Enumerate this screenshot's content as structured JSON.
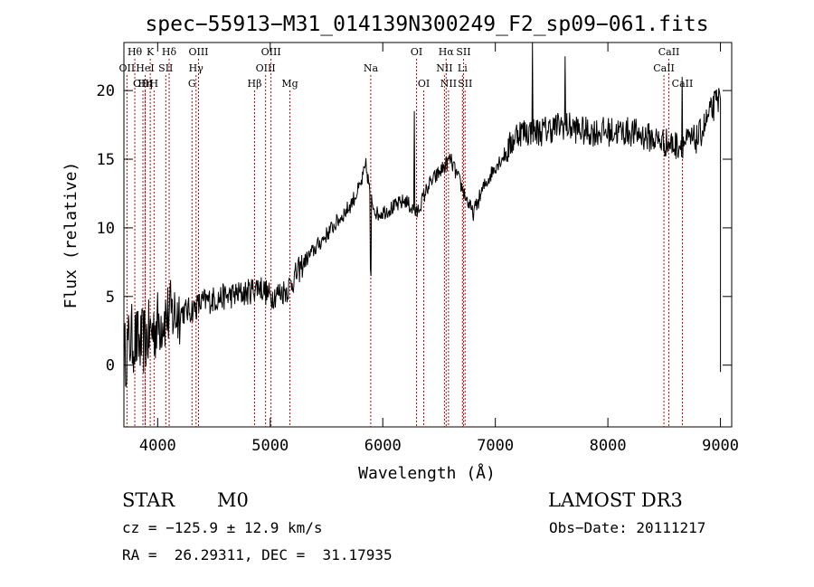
{
  "info": {
    "object_class": "STAR",
    "subclass": "M0",
    "survey": "LAMOST DR3",
    "redshift_line": "cz = −125.9 ± 12.9 km/s",
    "obs_date": "Obs−Date: 20111217",
    "coords": "RA =  26.29311, DEC =  31.17935"
  },
  "chart_data": {
    "type": "line",
    "title": "spec−55913−M31_014139N300249_F2_sp09−061.fits",
    "xlabel": "Wavelength (Å)",
    "ylabel": "Flux (relative)",
    "xlim": [
      3700,
      9100
    ],
    "ylim": [
      -4.5,
      23.5
    ],
    "xticks": [
      4000,
      5000,
      6000,
      7000,
      8000,
      9000
    ],
    "yticks": [
      0,
      5,
      10,
      15,
      20
    ],
    "grid": false,
    "line_color": "#000000",
    "marker_color": "#cc0000",
    "spectrum_anchors": [
      [
        3700,
        0.5
      ],
      [
        3760,
        2.0
      ],
      [
        3850,
        1.5
      ],
      [
        3950,
        2.5
      ],
      [
        4050,
        3.5
      ],
      [
        4150,
        3.8
      ],
      [
        4300,
        4.0
      ],
      [
        4400,
        4.6
      ],
      [
        4600,
        5.0
      ],
      [
        4800,
        5.3
      ],
      [
        4900,
        5.8
      ],
      [
        5000,
        5.0
      ],
      [
        5150,
        5.5
      ],
      [
        5300,
        7.5
      ],
      [
        5500,
        9.5
      ],
      [
        5700,
        11.5
      ],
      [
        5800,
        13.0
      ],
      [
        5850,
        14.5
      ],
      [
        5900,
        12.0
      ],
      [
        5950,
        11.0
      ],
      [
        6100,
        11.5
      ],
      [
        6200,
        12.0
      ],
      [
        6300,
        11.0
      ],
      [
        6400,
        13.0
      ],
      [
        6500,
        14.0
      ],
      [
        6600,
        15.0
      ],
      [
        6700,
        13.0
      ],
      [
        6800,
        11.0
      ],
      [
        6900,
        13.0
      ],
      [
        7000,
        14.5
      ],
      [
        7100,
        15.5
      ],
      [
        7200,
        17.0
      ],
      [
        7400,
        17.0
      ],
      [
        7600,
        17.5
      ],
      [
        7800,
        17.0
      ],
      [
        8000,
        17.0
      ],
      [
        8200,
        17.0
      ],
      [
        8400,
        16.5
      ],
      [
        8600,
        16.0
      ],
      [
        8800,
        16.5
      ],
      [
        8950,
        19.0
      ],
      [
        9000,
        19.5
      ]
    ],
    "spectrum_features": [
      {
        "x": 5890,
        "y": 7.0
      },
      {
        "x": 5896,
        "y": 6.5
      },
      {
        "x": 6280,
        "y": 18.5
      },
      {
        "x": 7330,
        "y": 23.5
      },
      {
        "x": 7620,
        "y": 22.5
      },
      {
        "x": 8660,
        "y": 21.0
      }
    ],
    "spectrum_noise": [
      {
        "xmin": 3700,
        "xmax": 4200,
        "amplitude": 2.6
      },
      {
        "xmin": 4200,
        "xmax": 5300,
        "amplitude": 1.0
      },
      {
        "xmin": 5300,
        "xmax": 7100,
        "amplitude": 0.6
      },
      {
        "xmin": 7100,
        "xmax": 9000,
        "amplitude": 1.1
      }
    ],
    "lines": [
      {
        "name": "Hθ",
        "wl": 3797,
        "row": 1
      },
      {
        "name": "OII",
        "wl": 3727,
        "row": 2
      },
      {
        "name": "OIII",
        "wl": 3869,
        "row": 3
      },
      {
        "name": "K",
        "wl": 3934,
        "row": 1
      },
      {
        "name": "Hη",
        "wl": 3889,
        "row": 3
      },
      {
        "name": "HeI",
        "wl": 3889,
        "row": 2
      },
      {
        "name": "H",
        "wl": 3968,
        "row": 3
      },
      {
        "name": "SII",
        "wl": 4072,
        "row": 2
      },
      {
        "name": "Hδ",
        "wl": 4102,
        "row": 1
      },
      {
        "name": "OIII",
        "wl": 4363,
        "row": 1
      },
      {
        "name": "Hγ",
        "wl": 4341,
        "row": 2
      },
      {
        "name": "G",
        "wl": 4305,
        "row": 3
      },
      {
        "name": "OIII",
        "wl": 5007,
        "row": 1
      },
      {
        "name": "OIII",
        "wl": 4959,
        "row": 2
      },
      {
        "name": "Hβ",
        "wl": 4861,
        "row": 3
      },
      {
        "name": "Mg",
        "wl": 5175,
        "row": 3
      },
      {
        "name": "Na",
        "wl": 5893,
        "row": 2
      },
      {
        "name": "OI",
        "wl": 6300,
        "row": 1
      },
      {
        "name": "OI",
        "wl": 6364,
        "row": 3
      },
      {
        "name": "Hα",
        "wl": 6563,
        "row": 1
      },
      {
        "name": "NII",
        "wl": 6548,
        "row": 2
      },
      {
        "name": "NII",
        "wl": 6584,
        "row": 3
      },
      {
        "name": "SII",
        "wl": 6717,
        "row": 1
      },
      {
        "name": "Li",
        "wl": 6708,
        "row": 2
      },
      {
        "name": "SII",
        "wl": 6731,
        "row": 3
      },
      {
        "name": "CaII",
        "wl": 8542,
        "row": 1
      },
      {
        "name": "CaII",
        "wl": 8498,
        "row": 2
      },
      {
        "name": "CaII",
        "wl": 8662,
        "row": 3
      }
    ]
  }
}
